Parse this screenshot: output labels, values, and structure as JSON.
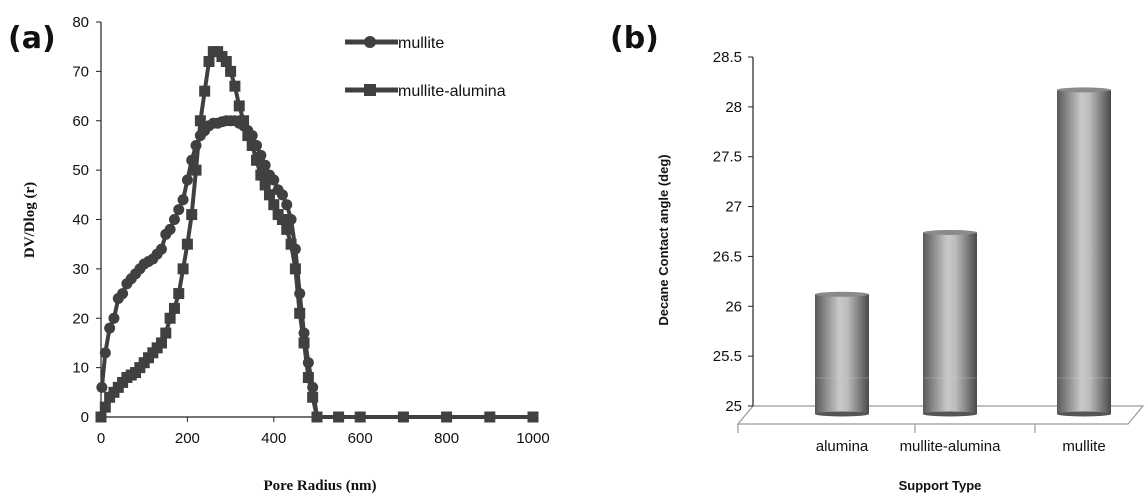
{
  "panels": {
    "a_label": "(a)",
    "b_label": "(b)"
  },
  "chart_data": [
    {
      "type": "line",
      "xlabel": "Pore Radius (nm)",
      "ylabel": "DV/Dlog (r)",
      "xlim": [
        0,
        1000
      ],
      "ylim": [
        0,
        80
      ],
      "xticks": [
        0,
        200,
        400,
        600,
        800,
        1000
      ],
      "yticks": [
        0,
        10,
        20,
        30,
        40,
        50,
        60,
        70,
        80
      ],
      "grid": false,
      "legend_position": "top-right",
      "colors": {
        "line": "#404040",
        "axis": "#222222"
      },
      "series": [
        {
          "name": "mullite",
          "marker": "circle",
          "x": [
            2,
            10,
            20,
            30,
            40,
            50,
            60,
            70,
            80,
            90,
            100,
            110,
            120,
            130,
            140,
            150,
            160,
            170,
            180,
            190,
            200,
            210,
            220,
            230,
            240,
            250,
            260,
            270,
            280,
            290,
            300,
            310,
            320,
            330,
            340,
            350,
            360,
            370,
            380,
            390,
            400,
            410,
            420,
            430,
            440,
            450,
            460,
            470,
            480,
            490,
            500
          ],
          "y": [
            6,
            13,
            18,
            20,
            24,
            25,
            27,
            28,
            29,
            30,
            31,
            31.5,
            32,
            33,
            34,
            37,
            38,
            40,
            42,
            44,
            48,
            52,
            55,
            57,
            58,
            59,
            59.5,
            59.5,
            59.8,
            60,
            60,
            60,
            59.5,
            59,
            58,
            57,
            55,
            53,
            51,
            49,
            48,
            46,
            45,
            43,
            40,
            34,
            25,
            17,
            11,
            6,
            0
          ]
        },
        {
          "name": "mullite-alumina",
          "marker": "square",
          "x": [
            0,
            10,
            20,
            30,
            40,
            50,
            60,
            70,
            80,
            90,
            100,
            110,
            120,
            130,
            140,
            150,
            160,
            170,
            180,
            190,
            200,
            210,
            220,
            230,
            240,
            250,
            260,
            270,
            280,
            290,
            300,
            310,
            320,
            330,
            340,
            350,
            360,
            370,
            380,
            390,
            400,
            410,
            420,
            430,
            440,
            450,
            460,
            470,
            480,
            490,
            500,
            550,
            600,
            700,
            800,
            900,
            1000
          ],
          "y": [
            0,
            2,
            4,
            5,
            6,
            7,
            8,
            8.5,
            9,
            10,
            11,
            12,
            13,
            14,
            15,
            17,
            20,
            22,
            25,
            30,
            35,
            41,
            50,
            60,
            66,
            72,
            74,
            74,
            73,
            72,
            70,
            67,
            63,
            60,
            57,
            55,
            52,
            49,
            47,
            45,
            43,
            41,
            40,
            38,
            35,
            30,
            21,
            15,
            8,
            4,
            0,
            0,
            0,
            0,
            0,
            0,
            0
          ]
        }
      ]
    },
    {
      "type": "bar",
      "xlabel": "Support Type",
      "ylabel": "Decane Contact angle (deg)",
      "categories": [
        "alumina",
        "mullite-alumina",
        "mullite"
      ],
      "values": [
        26.08,
        26.7,
        28.13
      ],
      "ylim": [
        25,
        28.5
      ],
      "yticks": [
        "25",
        "25.5",
        "26",
        "26.5",
        "27",
        "27.5",
        "28",
        "28.5"
      ],
      "grid": false,
      "colors": {
        "bar_dark": "#5e5e5e",
        "bar_light": "#c7c7c7",
        "floor": "#9a9a9a"
      }
    }
  ]
}
